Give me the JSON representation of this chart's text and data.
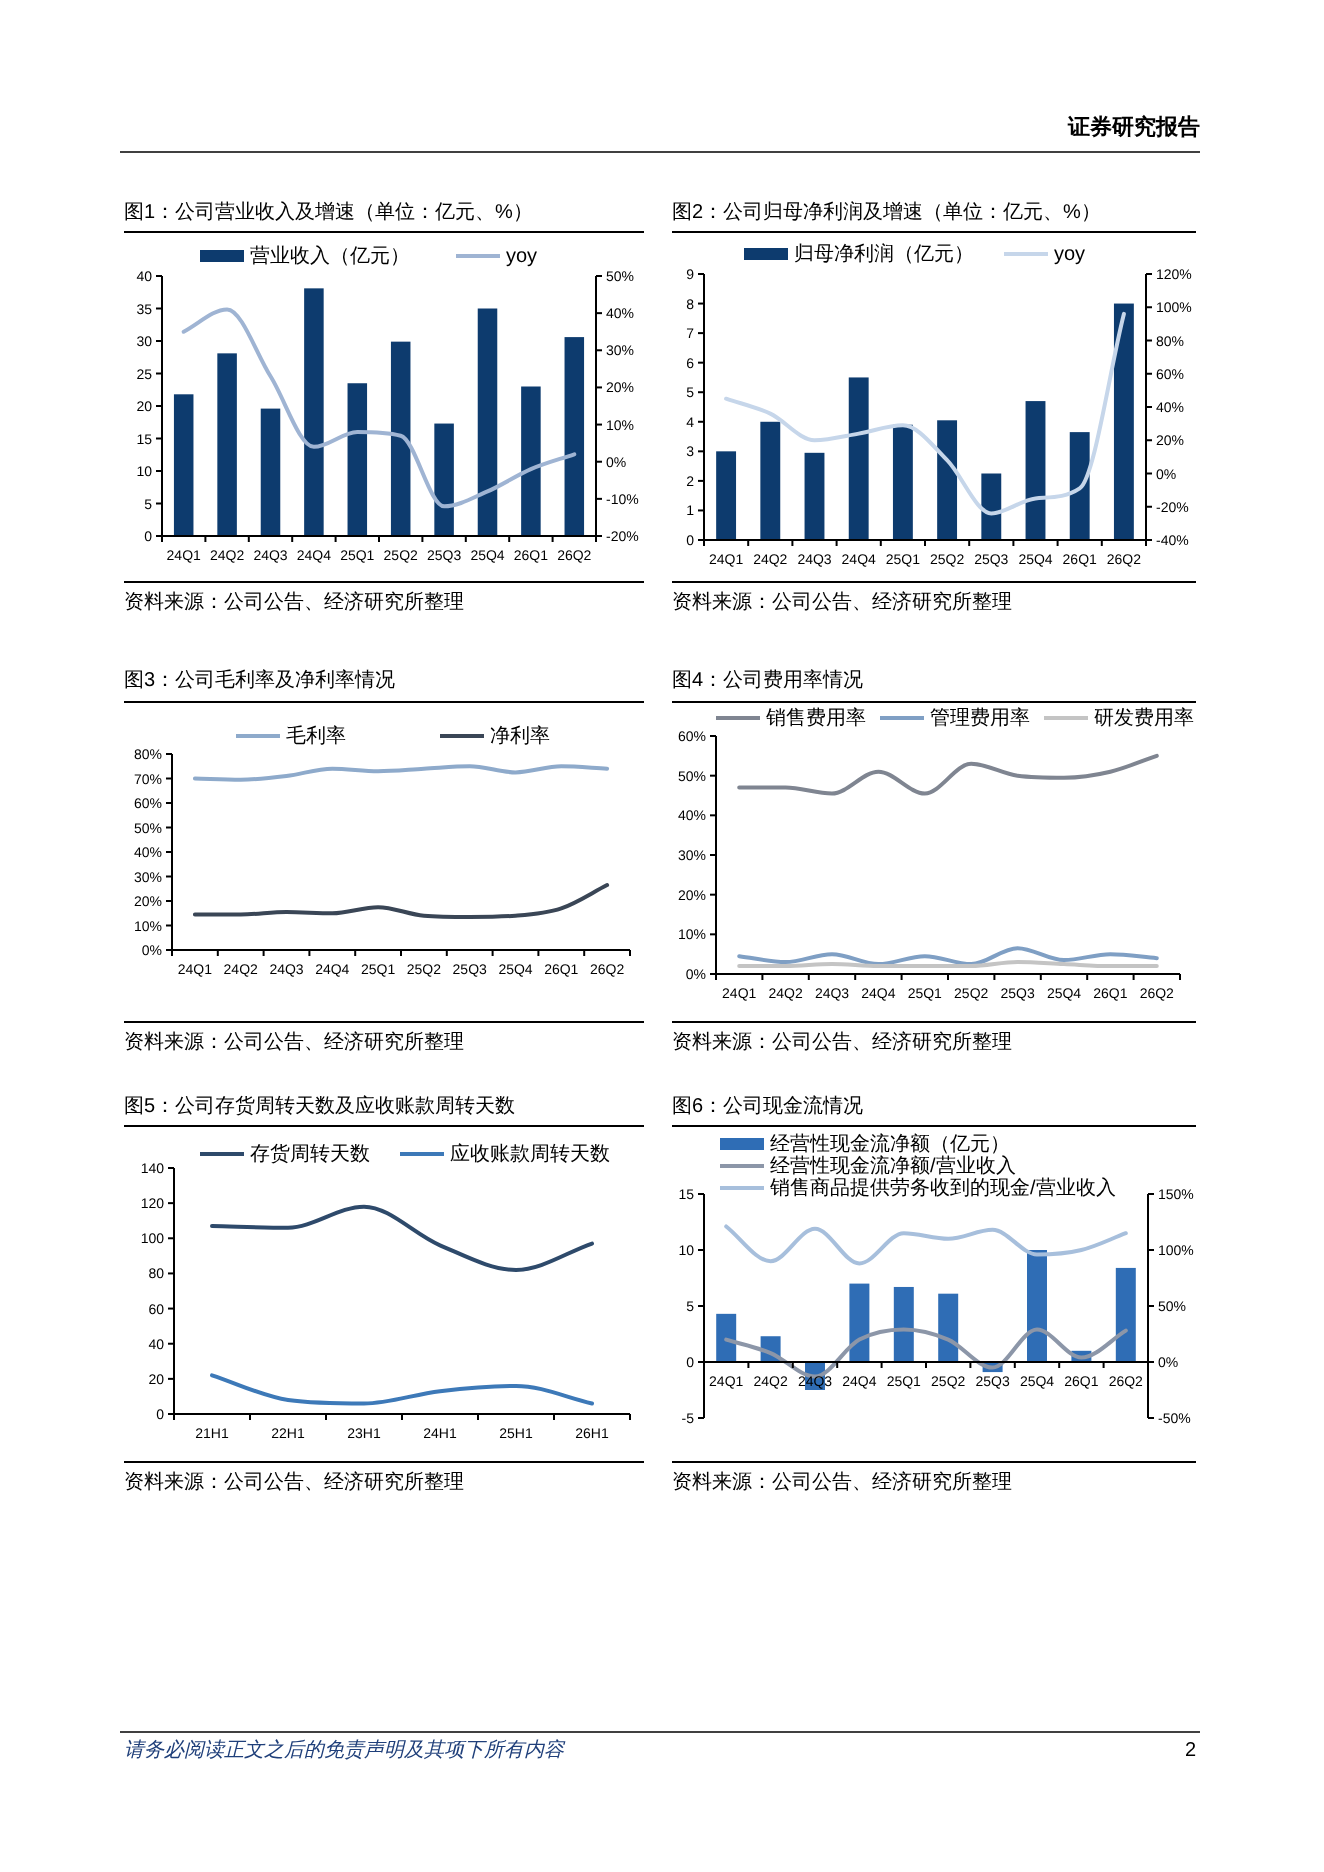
{
  "chart_data": [
    {
      "type": "bar",
      "title": "图1：公司营业收入及增速（单位：亿元、%）",
      "categories": [
        "24Q1",
        "24Q2",
        "24Q3",
        "24Q4",
        "25Q1",
        "25Q2",
        "25Q3",
        "25Q4",
        "26Q1",
        "26Q2"
      ],
      "series": [
        {
          "name": "营业收入（亿元）",
          "type": "bar",
          "color": "#0d3b6e",
          "values": [
            21.8,
            28.1,
            19.6,
            38.1,
            23.5,
            29.9,
            17.3,
            35.0,
            23.0,
            30.6
          ]
        },
        {
          "name": "yoy",
          "type": "line",
          "axis": "y2",
          "color": "#9fb4d3",
          "values": [
            35,
            41,
            23,
            4,
            8,
            7,
            -12,
            -8,
            -2,
            2
          ]
        }
      ],
      "ylim": [
        0,
        40
      ],
      "yticks": [
        0,
        5,
        10,
        15,
        20,
        25,
        30,
        35,
        40
      ],
      "y2lim": [
        -20,
        50
      ],
      "y2ticks": [
        {
          "value": -20,
          "label": "-20%"
        },
        {
          "value": -10,
          "label": "-10%"
        },
        {
          "value": 0,
          "label": "0%"
        },
        {
          "value": 10,
          "label": "10%"
        },
        {
          "value": 20,
          "label": "20%"
        },
        {
          "value": 30,
          "label": "30%"
        },
        {
          "value": 40,
          "label": "40%"
        },
        {
          "value": 50,
          "label": "50%"
        }
      ],
      "legend": "top",
      "annotations": [
        "资料来源：公司公告、经济研究所整理",
        "证券研究报告"
      ]
    },
    {
      "type": "bar",
      "title": "图2：公司归母净利润及增速（单位：亿元、%）",
      "categories": [
        "24Q1",
        "24Q2",
        "24Q3",
        "24Q4",
        "25Q1",
        "25Q2",
        "25Q3",
        "25Q4",
        "26Q1",
        "26Q2"
      ],
      "series": [
        {
          "name": "归母净利润（亿元）",
          "type": "bar",
          "color": "#0d3b6e",
          "values": [
            3.0,
            4.0,
            2.95,
            5.5,
            3.9,
            4.05,
            2.25,
            4.7,
            3.65,
            8.0
          ]
        },
        {
          "name": "yoy",
          "type": "line",
          "axis": "y2",
          "color": "#c6d6ea",
          "values": [
            45,
            36,
            20,
            24,
            29,
            8,
            -24,
            -15,
            -9,
            96
          ]
        }
      ],
      "ylim": [
        0,
        9
      ],
      "yticks": [
        0,
        1,
        2,
        3,
        4,
        5,
        6,
        7,
        8,
        9
      ],
      "y2lim": [
        -40,
        120
      ],
      "y2ticks": [
        {
          "value": -40,
          "label": "-40%"
        },
        {
          "value": -20,
          "label": "-20%"
        },
        {
          "value": 0,
          "label": "0%"
        },
        {
          "value": 20,
          "label": "20%"
        },
        {
          "value": 40,
          "label": "40%"
        },
        {
          "value": 60,
          "label": "60%"
        },
        {
          "value": 80,
          "label": "80%"
        },
        {
          "value": 100,
          "label": "100%"
        },
        {
          "value": 120,
          "label": "120%"
        }
      ],
      "legend": "top",
      "annotations": [
        "资料来源：公司公告、经济研究所整理"
      ]
    },
    {
      "type": "line",
      "title": "图3：公司毛利率及净利率情况",
      "categories": [
        "24Q1",
        "24Q2",
        "24Q3",
        "24Q4",
        "25Q1",
        "25Q2",
        "25Q3",
        "25Q4",
        "26Q1",
        "26Q2"
      ],
      "series": [
        {
          "name": "毛利率",
          "color": "#8eaacb",
          "values": [
            70,
            69.5,
            71,
            74,
            73,
            74,
            75,
            72.5,
            75,
            74
          ]
        },
        {
          "name": "净利率",
          "color": "#3a4656",
          "values": [
            14.5,
            14.5,
            15.5,
            15,
            17.5,
            14,
            13.5,
            14,
            17,
            26.5
          ]
        }
      ],
      "ylim": [
        0,
        80
      ],
      "yticks": [
        {
          "value": 0,
          "label": "0%"
        },
        {
          "value": 10,
          "label": "10%"
        },
        {
          "value": 20,
          "label": "20%"
        },
        {
          "value": 30,
          "label": "30%"
        },
        {
          "value": 40,
          "label": "40%"
        },
        {
          "value": 50,
          "label": "50%"
        },
        {
          "value": 60,
          "label": "60%"
        },
        {
          "value": 70,
          "label": "70%"
        },
        {
          "value": 80,
          "label": "80%"
        }
      ],
      "legend": "top",
      "annotations": [
        "资料来源：公司公告、经济研究所整理"
      ]
    },
    {
      "type": "line",
      "title": "图4：公司费用率情况",
      "categories": [
        "24Q1",
        "24Q2",
        "24Q3",
        "24Q4",
        "25Q1",
        "25Q2",
        "25Q3",
        "25Q4",
        "26Q1",
        "26Q2"
      ],
      "series": [
        {
          "name": "销售费用率",
          "color": "#7f8591",
          "values": [
            47,
            47,
            45.5,
            51,
            45.5,
            53,
            50,
            49.5,
            51,
            55
          ]
        },
        {
          "name": "管理费用率",
          "color": "#7f9fc4",
          "values": [
            4.5,
            3,
            5,
            2.5,
            4.5,
            2.5,
            6.5,
            3.5,
            5,
            4
          ]
        },
        {
          "name": "研发费用率",
          "color": "#c4c4c4",
          "values": [
            2,
            2,
            2.5,
            2,
            2,
            2,
            3,
            2.5,
            2,
            2
          ]
        }
      ],
      "ylim": [
        0,
        60
      ],
      "yticks": [
        {
          "value": 0,
          "label": "0%"
        },
        {
          "value": 10,
          "label": "10%"
        },
        {
          "value": 20,
          "label": "20%"
        },
        {
          "value": 30,
          "label": "30%"
        },
        {
          "value": 40,
          "label": "40%"
        },
        {
          "value": 50,
          "label": "50%"
        },
        {
          "value": 60,
          "label": "60%"
        }
      ],
      "legend": "top",
      "annotations": [
        "资料来源：公司公告、经济研究所整理"
      ]
    },
    {
      "type": "line",
      "title": "图5：公司存货周转天数及应收账款周转天数",
      "categories": [
        "21H1",
        "22H1",
        "23H1",
        "24H1",
        "25H1",
        "26H1"
      ],
      "series": [
        {
          "name": "存货周转天数",
          "color": "#2e4a6b",
          "values": [
            107,
            106,
            118,
            96,
            82,
            97
          ]
        },
        {
          "name": "应收账款周转天数",
          "color": "#3d79b8",
          "values": [
            22,
            8,
            6,
            13,
            16,
            6
          ]
        }
      ],
      "ylim": [
        0,
        140
      ],
      "yticks": [
        0,
        20,
        40,
        60,
        80,
        100,
        120,
        140
      ],
      "legend": "top",
      "annotations": [
        "资料来源：公司公告、经济研究所整理"
      ]
    },
    {
      "type": "bar",
      "title": "图6：公司现金流情况",
      "categories": [
        "24Q1",
        "24Q2",
        "24Q3",
        "24Q4",
        "25Q1",
        "25Q2",
        "25Q3",
        "25Q4",
        "26Q1",
        "26Q2"
      ],
      "series": [
        {
          "name": "经营性现金流净额（亿元）",
          "type": "bar",
          "color": "#2f6db5",
          "values": [
            4.3,
            2.3,
            -2.5,
            7.0,
            6.7,
            6.1,
            -0.9,
            10.0,
            1.0,
            8.4
          ]
        },
        {
          "name": "经营性现金流净额/营业收入",
          "type": "line",
          "axis": "y2",
          "color": "#8c96a8",
          "values": [
            20,
            8,
            -13,
            20,
            29,
            20,
            -5,
            29,
            4,
            28
          ]
        },
        {
          "name": "销售商品提供劳务收到的现金/营业收入",
          "type": "line",
          "axis": "y2",
          "color": "#a7bfdc",
          "values": [
            121,
            90,
            119,
            88,
            115,
            110,
            118,
            96,
            100,
            115
          ]
        }
      ],
      "ylim": [
        -5,
        15
      ],
      "yticks": [
        -5,
        0,
        5,
        10,
        15
      ],
      "y2lim": [
        -50,
        150
      ],
      "y2ticks": [
        {
          "value": -50,
          "label": "-50%"
        },
        {
          "value": 0,
          "label": "0%"
        },
        {
          "value": 50,
          "label": "50%"
        },
        {
          "value": 100,
          "label": "100%"
        },
        {
          "value": 150,
          "label": "150%"
        }
      ],
      "legend": "top",
      "annotations": [
        "资料来源：公司公告、经济研究所整理",
        "请务必阅读正文之后的免责声明及其项下所有内容",
        "2"
      ]
    }
  ]
}
